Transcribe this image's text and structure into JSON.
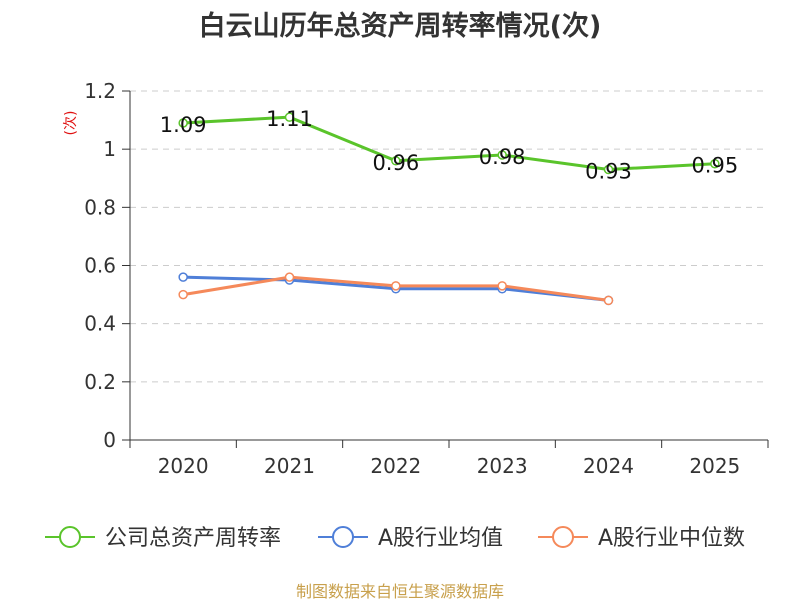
{
  "chart_data": {
    "type": "line",
    "title": "白云山历年总资产周转率情况(次)",
    "ylabel": "(次)",
    "xlabel": "",
    "categories": [
      "2020",
      "2021",
      "2022",
      "2023",
      "2024",
      "2025"
    ],
    "ylim": [
      0,
      1.2
    ],
    "yticks": [
      "0",
      "0.2",
      "0.4",
      "0.6",
      "0.8",
      "1",
      "1.2"
    ],
    "grid": true,
    "legend_position": "bottom",
    "series": [
      {
        "name": "公司总资产周转率",
        "color": "#5ac42b",
        "values": [
          1.09,
          1.11,
          0.96,
          0.98,
          0.93,
          0.95
        ],
        "labels": [
          "1.09",
          "1.11",
          "0.96",
          "0.98",
          "0.93",
          "0.95"
        ]
      },
      {
        "name": "A股行业均值",
        "color": "#4f7fd8",
        "values": [
          0.56,
          0.55,
          0.52,
          0.52,
          0.48,
          null
        ]
      },
      {
        "name": "A股行业中位数",
        "color": "#f5895a",
        "values": [
          0.5,
          0.56,
          0.53,
          0.53,
          0.48,
          null
        ]
      }
    ]
  },
  "footer": "制图数据来自恒生聚源数据库"
}
